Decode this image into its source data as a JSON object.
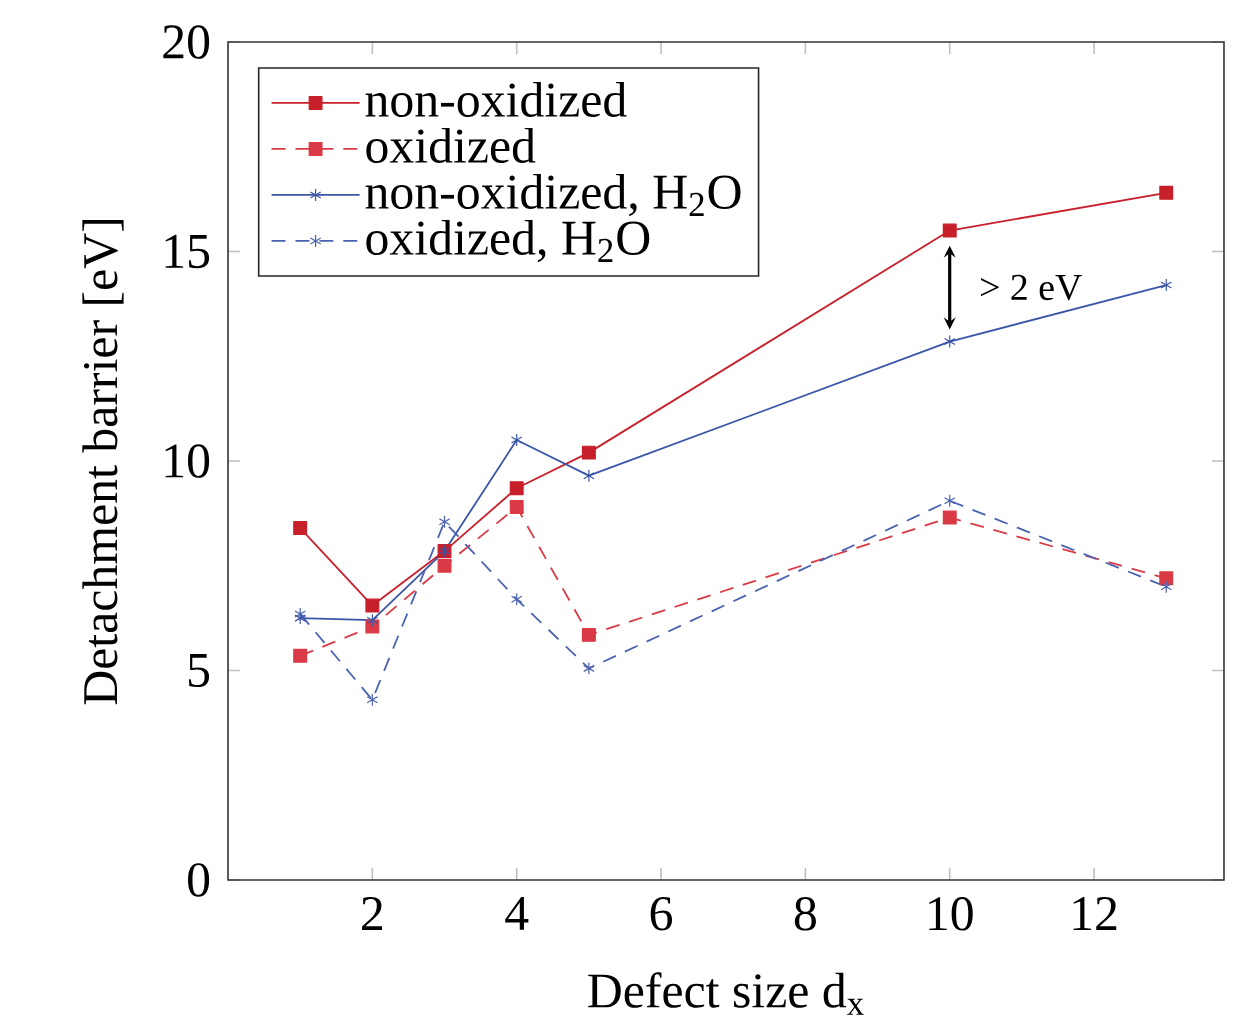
{
  "chart_data": {
    "type": "line",
    "xlabel": "Defect size d$_{x}$",
    "ylabel": "Detachment barrier [eV]",
    "x": [
      1,
      2,
      3,
      4,
      5,
      10,
      13
    ],
    "xlim": [
      0,
      13.8
    ],
    "xticks": [
      2,
      4,
      6,
      8,
      10,
      12
    ],
    "ylim": [
      0,
      20
    ],
    "yticks": [
      0,
      5,
      10,
      15,
      20
    ],
    "grid": false,
    "legend": "top left",
    "series": [
      {
        "name": "non-oxidized",
        "color": "#c8202a",
        "marker": "square",
        "line_style": "solid",
        "values": [
          8.4,
          6.55,
          7.85,
          9.35,
          10.2,
          15.5,
          16.4
        ]
      },
      {
        "name": "oxidized",
        "color": "#d93a46",
        "marker": "square",
        "line_style": "dashed",
        "values": [
          5.35,
          6.05,
          7.5,
          8.9,
          5.85,
          8.65,
          7.2
        ]
      },
      {
        "name": "non-oxidized, H$_{2}$O",
        "color": "#3a55a8",
        "marker": "cross",
        "line_style": "solid",
        "values": [
          6.25,
          6.2,
          7.85,
          10.5,
          9.65,
          12.85,
          14.2
        ]
      },
      {
        "name": "oxidized, H$_{2}$O",
        "color": "#4a62b0",
        "marker": "cross",
        "line_style": "dashed",
        "values": [
          6.35,
          4.3,
          8.55,
          6.7,
          5.05,
          9.05,
          7.0
        ]
      }
    ],
    "annotations": [
      "> 2 eV"
    ]
  }
}
